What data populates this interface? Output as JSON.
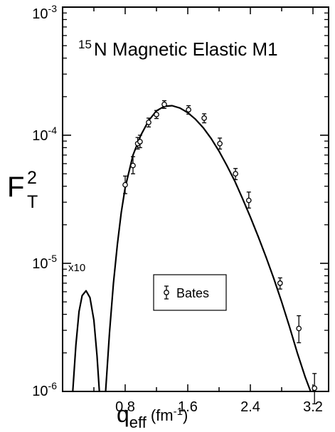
{
  "chart_data": {
    "type": "scatter",
    "title": "N Magnetic Elastic M1",
    "title_superscript": "15",
    "xlabel_main": "q",
    "xlabel_sub": "eff",
    "xlabel_unit": "(fm",
    "xlabel_unit_exp": "-1",
    "xlabel_unit_close": ")",
    "ylabel_main": "F",
    "ylabel_sup": "2",
    "ylabel_sub": "T",
    "x_scale": "linear",
    "y_scale": "log",
    "xlim": [
      0.0,
      3.4
    ],
    "ylim": [
      1e-06,
      0.001
    ],
    "x_ticks": [
      0.8,
      1.6,
      2.4,
      3.2
    ],
    "x_tick_labels": [
      "0.8",
      "1.6",
      "2.4",
      "3.2"
    ],
    "y_ticks": [
      1e-06,
      1e-05,
      0.0001,
      0.001
    ],
    "y_tick_labels": [
      {
        "base": "10",
        "exp": "-6"
      },
      {
        "base": "10",
        "exp": "-5"
      },
      {
        "base": "10",
        "exp": "-4"
      },
      {
        "base": "10",
        "exp": "-3"
      }
    ],
    "legend_placement": "lower-middle",
    "grid": false,
    "annotation": "x10",
    "series": [
      {
        "name": "Bates",
        "kind": "points-with-error-bars",
        "marker": "open-circle",
        "points": [
          {
            "x": 0.8,
            "y": 4.1e-05,
            "err_lo": 3.5e-05,
            "err_hi": 4.8e-05
          },
          {
            "x": 0.9,
            "y": 5.8e-05,
            "err_lo": 5e-05,
            "err_hi": 6.8e-05
          },
          {
            "x": 0.96,
            "y": 8.6e-05,
            "err_lo": 7.8e-05,
            "err_hi": 9.6e-05
          },
          {
            "x": 0.99,
            "y": 8.9e-05,
            "err_lo": 8e-05,
            "err_hi": 0.0001
          },
          {
            "x": 1.1,
            "y": 0.000126,
            "err_lo": 0.000116,
            "err_hi": 0.000136
          },
          {
            "x": 1.2,
            "y": 0.000145,
            "err_lo": 0.000135,
            "err_hi": 0.000156
          },
          {
            "x": 1.3,
            "y": 0.000174,
            "err_lo": 0.000162,
            "err_hi": 0.000186
          },
          {
            "x": 1.61,
            "y": 0.000158,
            "err_lo": 0.000146,
            "err_hi": 0.00017
          },
          {
            "x": 1.81,
            "y": 0.000136,
            "err_lo": 0.000125,
            "err_hi": 0.000147
          },
          {
            "x": 2.01,
            "y": 8.6e-05,
            "err_lo": 7.8e-05,
            "err_hi": 9.5e-05
          },
          {
            "x": 2.21,
            "y": 5e-05,
            "err_lo": 4.5e-05,
            "err_hi": 5.5e-05
          },
          {
            "x": 2.38,
            "y": 3.1e-05,
            "err_lo": 2.7e-05,
            "err_hi": 3.6e-05
          },
          {
            "x": 2.78,
            "y": 7e-06,
            "err_lo": 6.3e-06,
            "err_hi": 7.7e-06
          },
          {
            "x": 3.02,
            "y": 3.1e-06,
            "err_lo": 2.4e-06,
            "err_hi": 3.9e-06
          },
          {
            "x": 3.22,
            "y": 1.06e-06,
            "err_lo": 8e-07,
            "err_hi": 1.38e-06
          }
        ]
      },
      {
        "kind": "theory-curve",
        "segments": [
          [
            [
              0.13,
              1e-06
            ],
            [
              0.17,
              2.3e-06
            ],
            [
              0.21,
              4.2e-06
            ],
            [
              0.25,
              5.6e-06
            ],
            [
              0.3,
              6.1e-06
            ],
            [
              0.35,
              5.4e-06
            ],
            [
              0.4,
              3.6e-06
            ],
            [
              0.44,
              1.9e-06
            ],
            [
              0.47,
              1e-06
            ]
          ],
          [
            [
              0.55,
              1e-06
            ],
            [
              0.6,
              2.9e-06
            ],
            [
              0.65,
              7e-06
            ],
            [
              0.7,
              1.4e-05
            ],
            [
              0.75,
              2.5e-05
            ],
            [
              0.8,
              3.9e-05
            ],
            [
              0.9,
              7e-05
            ],
            [
              1.0,
              0.0001
            ],
            [
              1.1,
              0.00013
            ],
            [
              1.2,
              0.000155
            ],
            [
              1.3,
              0.000168
            ],
            [
              1.4,
              0.00017
            ],
            [
              1.5,
              0.000163
            ],
            [
              1.6,
              0.00015
            ],
            [
              1.7,
              0.000133
            ],
            [
              1.8,
              0.000114
            ],
            [
              1.9,
              9.4e-05
            ],
            [
              2.0,
              7.5e-05
            ],
            [
              2.1,
              5.8e-05
            ],
            [
              2.2,
              4.4e-05
            ],
            [
              2.3,
              3.2e-05
            ],
            [
              2.4,
              2.3e-05
            ],
            [
              2.5,
              1.62e-05
            ],
            [
              2.6,
              1.12e-05
            ],
            [
              2.7,
              7.6e-06
            ],
            [
              2.8,
              5e-06
            ],
            [
              2.9,
              3.2e-06
            ],
            [
              3.0,
              2e-06
            ],
            [
              3.1,
              1.3e-06
            ],
            [
              3.17,
              1e-06
            ]
          ]
        ]
      }
    ]
  }
}
